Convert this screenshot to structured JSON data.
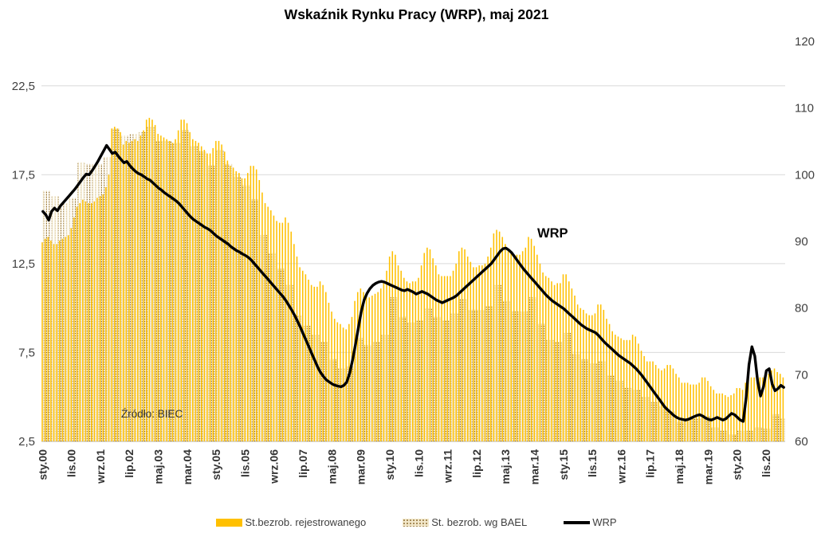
{
  "title": "Wskaźnik Rynku Pracy (WRP), maj 2021",
  "source_note": "Źródło: BIEC",
  "wrp_annotation": "WRP",
  "colors": {
    "registered_bar": "#FFC000",
    "bael_base": "#F2E7C9",
    "bael_dot": "#8D6C33",
    "wrp_line": "#000000",
    "gridline": "#D9D9D9",
    "axis_line": "#BFBFBF",
    "tick_text": "#404040"
  },
  "legend": [
    {
      "label": "St.bezrob. rejestrowanego",
      "swatch": "solid"
    },
    {
      "label": "St. bezrob. wg BAEL",
      "swatch": "pattern"
    },
    {
      "label": "WRP",
      "swatch": "line"
    }
  ],
  "chart_data": {
    "type": "bar",
    "subtype": "monthly grouped bars (left axis) + line (right axis)",
    "title": "Wskaźnik Rynku Pracy (WRP), maj 2021",
    "x_range": "sty.00 (Jan 2000) to maj.21 (May 2021), monthly",
    "x_tick_every": 10,
    "x_tick_labels": [
      "sty.00",
      "lis.00",
      "wrz.01",
      "lip.02",
      "maj.03",
      "mar.04",
      "sty.05",
      "lis.05",
      "wrz.06",
      "lip.07",
      "maj.08",
      "mar.09",
      "sty.10",
      "lis.10",
      "wrz.11",
      "lip.12",
      "maj.13",
      "mar.14",
      "sty.15",
      "lis.15",
      "wrz.16",
      "lip.17",
      "maj.18",
      "mar.19",
      "sty.20",
      "lis.20"
    ],
    "left_axis": {
      "min": 2.5,
      "max": 25,
      "tick_values": [
        2.5,
        7.5,
        12.5,
        17.5,
        22.5
      ],
      "tick_labels": [
        "2,5",
        "7,5",
        "12,5",
        "17,5",
        "22,5"
      ]
    },
    "right_axis": {
      "min": 60,
      "max": 120,
      "tick_values": [
        60,
        70,
        80,
        90,
        100,
        110,
        120
      ],
      "tick_labels": [
        "60",
        "70",
        "80",
        "90",
        "100",
        "110",
        "120"
      ]
    },
    "grid": "horizontal at left-axis ticks",
    "legend_position": "bottom",
    "series": [
      {
        "name": "St.bezrob. rejestrowanego",
        "type": "bar",
        "axis": "left",
        "color": "#FFC000",
        "values": [
          13.7,
          13.9,
          14.0,
          13.8,
          13.6,
          13.6,
          13.8,
          13.9,
          14.0,
          14.1,
          14.5,
          15.1,
          15.7,
          15.9,
          16.1,
          16.0,
          15.9,
          15.9,
          16.0,
          16.2,
          16.3,
          16.4,
          16.8,
          17.5,
          20.1,
          20.2,
          20.1,
          19.9,
          19.2,
          19.4,
          19.3,
          19.4,
          19.5,
          19.4,
          19.7,
          20.0,
          20.6,
          20.7,
          20.6,
          20.3,
          19.8,
          19.7,
          19.6,
          19.5,
          19.4,
          19.3,
          19.5,
          20.0,
          20.6,
          20.6,
          20.4,
          19.9,
          19.5,
          19.4,
          19.3,
          19.1,
          18.9,
          18.7,
          18.7,
          19.0,
          19.4,
          19.4,
          19.2,
          18.8,
          18.3,
          18.0,
          17.9,
          17.7,
          17.6,
          17.3,
          17.3,
          17.6,
          18.0,
          18.0,
          17.8,
          17.2,
          16.5,
          15.9,
          15.7,
          15.5,
          15.2,
          14.9,
          14.8,
          14.8,
          15.1,
          14.8,
          14.3,
          13.6,
          12.9,
          12.3,
          12.1,
          11.9,
          11.6,
          11.3,
          11.2,
          11.2,
          11.5,
          11.3,
          10.9,
          10.3,
          9.8,
          9.4,
          9.2,
          9.1,
          8.9,
          8.8,
          9.1,
          9.5,
          10.4,
          10.9,
          11.1,
          10.9,
          10.7,
          10.6,
          10.7,
          10.8,
          10.9,
          11.1,
          11.4,
          12.1,
          12.9,
          13.2,
          13.0,
          12.4,
          12.1,
          11.7,
          11.5,
          11.4,
          11.5,
          11.5,
          11.7,
          12.4,
          13.1,
          13.4,
          13.3,
          12.8,
          12.4,
          11.9,
          11.8,
          11.8,
          11.8,
          11.8,
          12.1,
          12.5,
          13.2,
          13.4,
          13.3,
          12.9,
          12.6,
          12.3,
          12.3,
          12.4,
          12.4,
          12.5,
          12.9,
          13.4,
          14.2,
          14.4,
          14.3,
          14.0,
          13.6,
          13.2,
          13.1,
          13.0,
          13.0,
          13.0,
          13.2,
          13.4,
          14.0,
          13.9,
          13.5,
          13.0,
          12.5,
          12.0,
          11.8,
          11.7,
          11.5,
          11.3,
          11.4,
          11.4,
          11.9,
          11.9,
          11.5,
          11.1,
          10.7,
          10.2,
          10.0,
          9.9,
          9.7,
          9.6,
          9.6,
          9.7,
          10.2,
          10.2,
          9.9,
          9.4,
          9.1,
          8.7,
          8.5,
          8.4,
          8.3,
          8.2,
          8.2,
          8.2,
          8.5,
          8.4,
          8.0,
          7.6,
          7.3,
          7.0,
          7.0,
          7.0,
          6.8,
          6.6,
          6.5,
          6.6,
          6.8,
          6.8,
          6.6,
          6.3,
          6.1,
          5.8,
          5.8,
          5.8,
          5.7,
          5.7,
          5.7,
          5.8,
          6.1,
          6.1,
          5.9,
          5.6,
          5.4,
          5.2,
          5.2,
          5.2,
          5.1,
          5.0,
          5.1,
          5.2,
          5.5,
          5.5,
          5.4,
          5.8,
          6.0,
          6.1,
          6.1,
          6.1,
          6.1,
          6.1,
          6.1,
          6.3,
          6.5,
          6.6,
          6.4,
          6.3,
          6.1
        ]
      },
      {
        "name": "St. bezrob. wg BAEL",
        "type": "bar",
        "axis": "left",
        "color": "pattern:dots",
        "values": [
          16.6,
          16.6,
          16.6,
          16.3,
          16.3,
          16.3,
          15.9,
          15.9,
          15.9,
          16.2,
          16.2,
          16.2,
          18.2,
          18.2,
          18.2,
          18.1,
          18.1,
          18.1,
          18.1,
          18.1,
          18.1,
          18.5,
          18.5,
          18.5,
          20.1,
          20.1,
          20.1,
          19.7,
          19.7,
          19.7,
          19.8,
          19.8,
          19.8,
          19.9,
          19.9,
          19.9,
          20.2,
          20.2,
          20.2,
          19.4,
          19.4,
          19.4,
          19.4,
          19.4,
          19.4,
          19.3,
          19.3,
          19.3,
          20.0,
          20.0,
          20.0,
          19.1,
          19.1,
          19.1,
          18.8,
          18.8,
          18.8,
          18.0,
          18.0,
          18.0,
          18.9,
          18.9,
          18.9,
          18.1,
          18.1,
          18.1,
          17.4,
          17.4,
          17.4,
          16.9,
          16.9,
          16.9,
          16.1,
          16.1,
          16.1,
          14.1,
          14.1,
          14.1,
          13.1,
          13.1,
          13.1,
          12.2,
          12.2,
          12.2,
          11.3,
          11.3,
          11.3,
          9.6,
          9.6,
          9.6,
          9.0,
          9.0,
          9.0,
          8.5,
          8.5,
          8.5,
          8.1,
          8.1,
          8.1,
          7.1,
          7.1,
          7.1,
          6.6,
          6.6,
          6.6,
          6.7,
          6.7,
          6.7,
          8.3,
          8.3,
          8.3,
          7.9,
          7.9,
          7.9,
          8.1,
          8.1,
          8.1,
          8.5,
          8.5,
          8.5,
          10.6,
          10.6,
          10.6,
          9.5,
          9.5,
          9.5,
          9.2,
          9.2,
          9.2,
          9.3,
          9.3,
          9.3,
          10.0,
          10.0,
          10.0,
          9.5,
          9.5,
          9.5,
          9.3,
          9.3,
          9.3,
          9.7,
          9.7,
          9.7,
          10.5,
          10.5,
          10.5,
          9.9,
          9.9,
          9.9,
          9.9,
          9.9,
          9.9,
          10.1,
          10.1,
          10.1,
          11.3,
          11.3,
          11.3,
          10.4,
          10.4,
          10.4,
          9.8,
          9.8,
          9.8,
          9.8,
          9.8,
          9.8,
          10.6,
          10.6,
          10.6,
          9.1,
          9.1,
          9.1,
          8.2,
          8.2,
          8.2,
          8.1,
          8.1,
          8.1,
          8.6,
          8.6,
          8.6,
          7.4,
          7.4,
          7.4,
          7.1,
          7.1,
          7.1,
          6.9,
          6.9,
          6.9,
          7.0,
          7.0,
          7.0,
          6.2,
          6.2,
          6.2,
          5.9,
          5.9,
          5.9,
          5.5,
          5.5,
          5.5,
          5.4,
          5.4,
          5.4,
          5.0,
          5.0,
          5.0,
          4.7,
          4.7,
          4.7,
          4.5,
          4.5,
          4.5,
          4.2,
          4.2,
          4.2,
          3.6,
          3.6,
          3.6,
          3.8,
          3.8,
          3.8,
          3.8,
          3.8,
          3.8,
          3.9,
          3.9,
          3.9,
          3.3,
          3.3,
          3.3,
          3.1,
          3.1,
          3.1,
          2.9,
          2.9,
          2.9,
          3.1,
          3.1,
          3.1,
          3.1,
          3.1,
          3.1,
          3.3,
          3.3,
          3.3,
          3.2,
          3.2,
          3.2,
          4.0,
          4.0,
          4.0,
          3.8,
          3.8
        ]
      },
      {
        "name": "WRP",
        "type": "line",
        "axis": "right",
        "color": "#000000",
        "values": [
          94.5,
          94.0,
          93.2,
          94.5,
          95.0,
          94.6,
          95.3,
          95.8,
          96.3,
          96.8,
          97.3,
          97.8,
          98.4,
          99.0,
          99.6,
          100.1,
          100.0,
          100.6,
          101.3,
          102.0,
          102.8,
          103.6,
          104.4,
          103.8,
          103.2,
          103.4,
          102.8,
          102.3,
          101.8,
          102.0,
          101.4,
          100.9,
          100.5,
          100.2,
          100.0,
          99.7,
          99.4,
          99.2,
          98.8,
          98.4,
          98.0,
          97.7,
          97.3,
          97.0,
          96.7,
          96.4,
          96.1,
          95.7,
          95.2,
          94.7,
          94.2,
          93.7,
          93.3,
          93.0,
          92.7,
          92.4,
          92.1,
          91.9,
          91.6,
          91.2,
          90.8,
          90.5,
          90.2,
          89.9,
          89.6,
          89.2,
          88.9,
          88.6,
          88.4,
          88.1,
          87.9,
          87.6,
          87.2,
          86.7,
          86.2,
          85.7,
          85.2,
          84.7,
          84.2,
          83.7,
          83.2,
          82.7,
          82.2,
          81.7,
          81.1,
          80.4,
          79.7,
          78.9,
          78.0,
          77.1,
          76.1,
          75.1,
          74.1,
          73.1,
          72.1,
          71.1,
          70.3,
          69.7,
          69.2,
          68.9,
          68.6,
          68.4,
          68.3,
          68.2,
          68.4,
          68.9,
          70.2,
          72.2,
          74.5,
          77.0,
          79.5,
          81.2,
          82.2,
          82.9,
          83.4,
          83.7,
          83.9,
          84.0,
          83.9,
          83.7,
          83.5,
          83.3,
          83.1,
          82.9,
          82.7,
          82.6,
          82.8,
          82.6,
          82.4,
          82.1,
          82.3,
          82.5,
          82.3,
          82.1,
          81.8,
          81.5,
          81.2,
          81.0,
          80.8,
          81.0,
          81.2,
          81.4,
          81.6,
          81.9,
          82.3,
          82.7,
          83.1,
          83.5,
          83.9,
          84.3,
          84.7,
          85.1,
          85.5,
          85.9,
          86.3,
          86.7,
          87.3,
          87.9,
          88.5,
          88.9,
          89.0,
          88.7,
          88.3,
          87.7,
          87.1,
          86.5,
          85.9,
          85.4,
          84.9,
          84.4,
          83.9,
          83.4,
          82.9,
          82.4,
          81.9,
          81.5,
          81.1,
          80.8,
          80.5,
          80.2,
          79.9,
          79.5,
          79.1,
          78.7,
          78.3,
          77.9,
          77.5,
          77.2,
          76.9,
          76.7,
          76.5,
          76.3,
          75.9,
          75.4,
          74.9,
          74.5,
          74.1,
          73.7,
          73.3,
          72.9,
          72.6,
          72.3,
          72.0,
          71.7,
          71.3,
          70.9,
          70.4,
          69.9,
          69.3,
          68.7,
          68.1,
          67.5,
          66.9,
          66.3,
          65.7,
          65.1,
          64.7,
          64.3,
          63.9,
          63.6,
          63.4,
          63.3,
          63.2,
          63.3,
          63.5,
          63.7,
          63.9,
          64.0,
          63.8,
          63.5,
          63.3,
          63.2,
          63.4,
          63.6,
          63.4,
          63.2,
          63.4,
          63.8,
          64.2,
          64.0,
          63.6,
          63.2,
          63.0,
          66.5,
          71.5,
          74.2,
          72.8,
          69.0,
          66.8,
          68.2,
          70.6,
          70.9,
          68.6,
          67.6,
          67.9,
          68.4,
          68.1
        ]
      }
    ]
  }
}
